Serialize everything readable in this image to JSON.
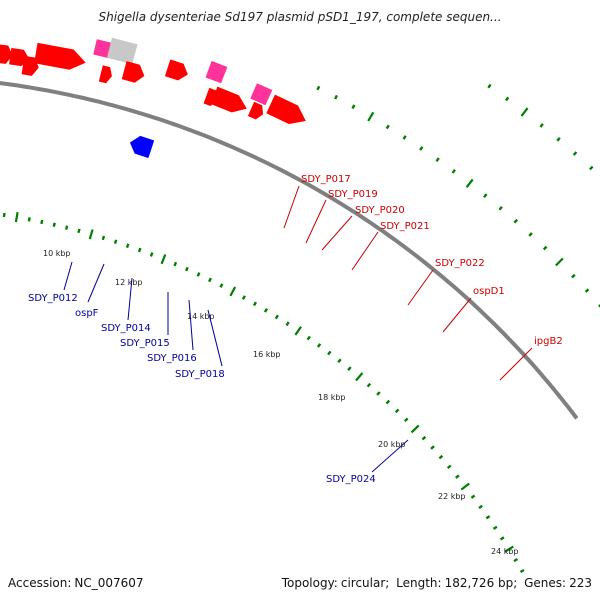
{
  "title": "Shigella dysenteriae Sd197 plasmid pSD1_197, complete sequen...",
  "footer": {
    "accession_label": "Accession:",
    "accession": "NC_007607",
    "topology_label": "Topology:",
    "topology": "circular;",
    "length_label": "Length:",
    "length": "182,726 bp;",
    "genes_label": "Genes:",
    "genes": "223"
  },
  "colors": {
    "forward_gene": "#ff0000",
    "reverse_gene": "#0000ff",
    "pink_gene": "#ff3399",
    "grey_gene": "#c8c8c8",
    "forward_label": "#cc0000",
    "reverse_label": "#000099",
    "backbone": "#808080",
    "tick": "#008000"
  },
  "ruler_labels": [
    "10 kbp",
    "12 kbp",
    "14 kbp",
    "16 kbp",
    "18 kbp",
    "20 kbp",
    "22 kbp",
    "24 kbp"
  ],
  "forward_labels": [
    "SDY_P017",
    "SDY_P019",
    "SDY_P020",
    "SDY_P021",
    "SDY_P022",
    "ospD1",
    "ipgB2"
  ],
  "reverse_labels": [
    "SDY_P012",
    "ospF",
    "SDY_P014",
    "SDY_P015",
    "SDY_P016",
    "SDY_P018",
    "SDY_P024"
  ]
}
